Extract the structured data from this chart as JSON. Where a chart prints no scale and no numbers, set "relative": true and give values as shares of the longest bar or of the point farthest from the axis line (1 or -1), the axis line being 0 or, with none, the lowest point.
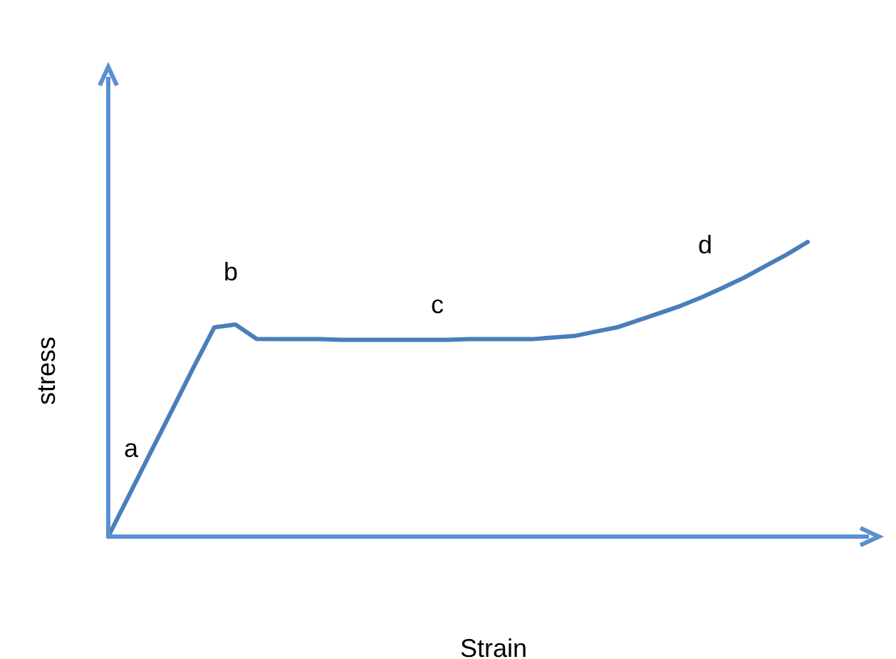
{
  "chart_data": {
    "type": "line",
    "relative": true,
    "xlabel": "Strain",
    "ylabel": "stress",
    "categories": [
      null,
      null,
      null,
      null,
      null,
      null,
      null,
      null,
      null,
      null,
      null,
      null,
      null,
      null,
      null,
      null,
      null,
      null,
      null,
      null,
      null,
      null,
      null,
      null,
      null,
      null,
      null,
      null,
      null,
      null,
      null,
      null,
      null,
      null
    ],
    "series": [
      {
        "color": "#4a7ebb",
        "values": [
          0,
          0.143,
          0.286,
          0.428,
          0.571,
          0.71,
          0.72,
          0.671,
          0.67,
          0.67,
          0.67,
          0.668,
          0.668,
          0.668,
          0.668,
          0.668,
          0.668,
          0.67,
          0.67,
          0.67,
          0.67,
          0.676,
          0.681,
          0.696,
          0.71,
          0.734,
          0.758,
          0.783,
          0.812,
          0.845,
          0.879,
          0.918,
          0.957,
          1
        ]
      }
    ],
    "annotations": [
      "a",
      "b",
      "c",
      "d"
    ],
    "grid": false,
    "marker": "none",
    "line_style": "solid"
  }
}
